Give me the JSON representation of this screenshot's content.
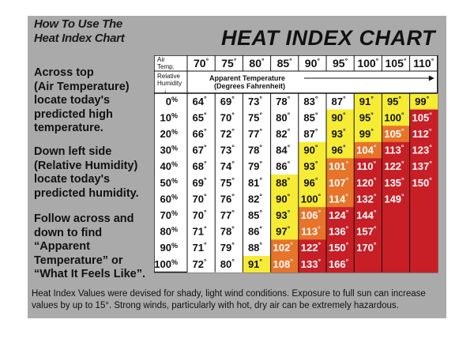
{
  "howto": {
    "lines": [
      "How To Use The",
      "Heat Index Chart"
    ]
  },
  "title": "HEAT INDEX CHART",
  "instructions": [
    [
      "Across top",
      "(Air Temperature)",
      "locate today's",
      "predicted high",
      "temperature."
    ],
    [
      "Down left side",
      "(Relative Humidity)",
      "locate today's",
      "predicted humidity."
    ],
    [
      "Follow across and",
      "down to find",
      "“Apparent",
      "Temperature” or",
      "“What It Feels Like”."
    ]
  ],
  "footnote": [
    "Heat Index Values were devised for shady, light wind conditions.  Exposure to full sun can increase",
    "values by up to 15°.  Strong winds, particularly with hot, dry air can be extremely hazardous."
  ],
  "header_labels": {
    "air_temp": [
      "Air",
      "Temp."
    ],
    "rel_humidity": [
      "Relative",
      "Humidity"
    ],
    "apparent": [
      "Apparent Temperature",
      "(Degrees Fahrenheit)"
    ],
    "arrow_down": "↓"
  },
  "colors": {
    "white": "#ffffff",
    "yellow": "#f6ec35",
    "orange": "#e8742a",
    "red": "#c81f26",
    "label_white": "#ffffff",
    "label_dark": "#111111"
  },
  "chart_data": {
    "type": "table",
    "columns": [
      "70°",
      "75°",
      "80°",
      "85°",
      "90°",
      "95°",
      "100°",
      "105°",
      "110°"
    ],
    "rows": [
      "0%",
      "10%",
      "20%",
      "30%",
      "40%",
      "50%",
      "60%",
      "70%",
      "80%",
      "90%",
      "100%"
    ],
    "values": [
      [
        64,
        69,
        73,
        78,
        83,
        87,
        91,
        95,
        99
      ],
      [
        65,
        70,
        75,
        80,
        85,
        90,
        95,
        100,
        105
      ],
      [
        66,
        72,
        77,
        82,
        87,
        93,
        99,
        105,
        112
      ],
      [
        67,
        73,
        78,
        84,
        90,
        96,
        104,
        113,
        123
      ],
      [
        68,
        74,
        79,
        86,
        93,
        101,
        110,
        122,
        137
      ],
      [
        69,
        75,
        81,
        88,
        96,
        107,
        120,
        135,
        150
      ],
      [
        70,
        76,
        82,
        90,
        100,
        114,
        132,
        149,
        null
      ],
      [
        70,
        77,
        85,
        93,
        106,
        124,
        144,
        null,
        null
      ],
      [
        71,
        78,
        86,
        97,
        113,
        136,
        157,
        null,
        null
      ],
      [
        71,
        79,
        88,
        102,
        122,
        150,
        170,
        null,
        null
      ],
      [
        72,
        80,
        91,
        108,
        133,
        166,
        null,
        null,
        null
      ]
    ],
    "zones": [
      [
        "w",
        "w",
        "w",
        "w",
        "w",
        "w",
        "y",
        "y",
        "y"
      ],
      [
        "w",
        "w",
        "w",
        "w",
        "w",
        "y",
        "y",
        "y",
        "r"
      ],
      [
        "w",
        "w",
        "w",
        "w",
        "w",
        "y",
        "y",
        "o",
        "r"
      ],
      [
        "w",
        "w",
        "w",
        "w",
        "y",
        "y",
        "o",
        "r",
        "r"
      ],
      [
        "w",
        "w",
        "w",
        "w",
        "y",
        "o",
        "r",
        "r",
        "r"
      ],
      [
        "w",
        "w",
        "w",
        "y",
        "y",
        "o",
        "r",
        "r",
        "r"
      ],
      [
        "w",
        "w",
        "w",
        "y",
        "y",
        "o",
        "r",
        "r",
        "r"
      ],
      [
        "w",
        "w",
        "w",
        "y",
        "o",
        "r",
        "r",
        "r",
        "r"
      ],
      [
        "w",
        "w",
        "w",
        "y",
        "o",
        "r",
        "r",
        "r",
        "r"
      ],
      [
        "w",
        "w",
        "w",
        "o",
        "r",
        "r",
        "r",
        "r",
        "r"
      ],
      [
        "w",
        "w",
        "y",
        "o",
        "r",
        "r",
        "r",
        "r",
        "r"
      ]
    ]
  }
}
